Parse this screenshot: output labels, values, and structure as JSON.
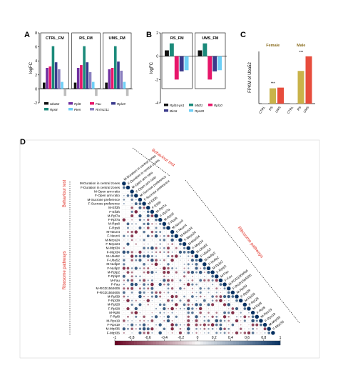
{
  "chart_data": [
    {
      "panel": "A",
      "type": "bar",
      "ylabel": "logFC",
      "ylim": [
        -2,
        8
      ],
      "yticks": [
        -2,
        0,
        2,
        4,
        6,
        8
      ],
      "groups": [
        "CTRL_FM",
        "RS_FM",
        "UMS_FM"
      ],
      "legend": [
        "Uba52",
        "Rpl8",
        "Fau",
        "Rpl19",
        "Rps8",
        "Pten",
        "Rn7s1/11"
      ],
      "series": [
        {
          "name": "Uba52",
          "color": "#111111",
          "values": [
            0.9,
            0.9,
            0.9
          ]
        },
        {
          "name": "Rpl8",
          "color": "#7030a0",
          "values": [
            3.0,
            3.0,
            2.8
          ]
        },
        {
          "name": "Fau",
          "color": "#e7166a",
          "values": [
            3.2,
            3.4,
            3.0
          ]
        },
        {
          "name": "Rps8",
          "color": "#1b8a7a",
          "values": [
            6.1,
            6.1,
            6.1
          ]
        },
        {
          "name": "Rpl19",
          "color": "#3a3a8c",
          "values": [
            3.8,
            3.8,
            3.9
          ]
        },
        {
          "name": "Rn7s1/11",
          "color": "#8a7fbf",
          "values": [
            2.8,
            2.4,
            2.6
          ]
        },
        {
          "name": "Pten",
          "color": "#6ecff6",
          "values": [
            1.0,
            1.0,
            1.0
          ]
        },
        {
          "name": "grey",
          "color": "#bdbdbd",
          "values": [
            -1.0,
            -1.0,
            -1.0
          ]
        }
      ]
    },
    {
      "panel": "B",
      "type": "bar",
      "ylabel": "logFC",
      "ylim": [
        -4,
        2
      ],
      "yticks": [
        -4,
        -2,
        0,
        2
      ],
      "groups": [
        "RS_FM",
        "UMS_FM"
      ],
      "legend": [
        "Rpl34-ps1",
        "Mtdt1",
        "Rpl10",
        "Birc6",
        "Rps28"
      ],
      "series": [
        {
          "name": "Rpl34-ps1",
          "color": "#111111",
          "values": [
            0.5,
            0.5
          ]
        },
        {
          "name": "Mtdt1",
          "color": "#1b8a7a",
          "values": [
            1.1,
            1.1
          ]
        },
        {
          "name": "Rpl10",
          "color": "#e7166a",
          "values": [
            -2.0,
            -2.0
          ]
        },
        {
          "name": "Birc6",
          "color": "#3a3a8c",
          "values": [
            -1.3,
            -1.3
          ]
        },
        {
          "name": "Rps28",
          "color": "#6ecff6",
          "values": [
            -1.2,
            -1.2
          ]
        }
      ]
    },
    {
      "panel": "C",
      "type": "bar",
      "ylabel": "FPKM of Uba52",
      "groups": [
        "Female",
        "Male"
      ],
      "categories": [
        "CTRL",
        "RS",
        "UMS"
      ],
      "colors": [
        "#c8c8c8",
        "#c9b34a",
        "#e74c3c"
      ],
      "values": [
        [
          8,
          220,
          230
        ],
        [
          10,
          470,
          680
        ]
      ],
      "significance": "***"
    },
    {
      "panel": "D",
      "type": "heatmap",
      "labels": [
        "M-Duration in central zones",
        "F-Duration in central zones",
        "M-Open arm ratio",
        "F-Open arm ratio",
        "M-Sucrose preference",
        "F-Sucrose preference",
        "M-Eif3h",
        "F-Eif3h",
        "M-Rpl7a",
        "F-Rpl7a",
        "M-Rps8",
        "F-Rps8",
        "M-Nsun4",
        "F-Nsun4",
        "M-Mrps24",
        "F-Mrps24",
        "M-Mrpl34",
        "F-Mrpl34",
        "M-Uba52",
        "F-Uba52",
        "M-Nufip2",
        "F-Nufip2",
        "M-Rplp2",
        "F-Rplp2",
        "M-Fau",
        "F-Fau",
        "M-RGD1564606",
        "F-RGD1564606",
        "M-Rpl39",
        "F-Rpl39",
        "M-Rpl28",
        "F-Rpl28",
        "M-Rpl8",
        "F-Rpl8",
        "M-Rps19",
        "F-Rps19",
        "M-Mrpl36",
        "F-Mrpl36"
      ],
      "group_labels": {
        "left_behaviour": "Behaviour test",
        "left_ribosome": "Ribosome pathways",
        "diag_behaviour": "Behaviour test",
        "diag_ribosome": "Ribosome pathways"
      },
      "colorbar": {
        "min": -1,
        "max": 1,
        "ticks": [
          "-1",
          "-0.8",
          "-0.6",
          "-0.4",
          "-0.2",
          "0",
          "0.2",
          "0.4",
          "0.6",
          "0.8",
          "1"
        ]
      }
    }
  ],
  "panel_letters": [
    "A",
    "B",
    "C",
    "D"
  ]
}
